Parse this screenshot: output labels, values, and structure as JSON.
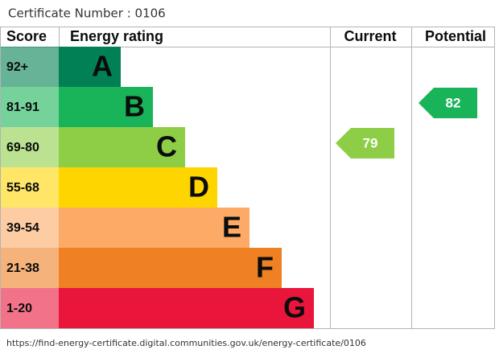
{
  "certificate": "Certificate Number : 0106",
  "headers": {
    "score": "Score",
    "rating": "Energy rating",
    "current": "Current",
    "potential": "Potential"
  },
  "bands": [
    {
      "score": "92+",
      "letter": "A",
      "color": "#008054"
    },
    {
      "score": "81-91",
      "letter": "B",
      "color": "#19b459"
    },
    {
      "score": "69-80",
      "letter": "C",
      "color": "#8dce46"
    },
    {
      "score": "55-68",
      "letter": "D",
      "color": "#ffd500"
    },
    {
      "score": "39-54",
      "letter": "E",
      "color": "#fcaa65"
    },
    {
      "score": "21-38",
      "letter": "F",
      "color": "#ef8023"
    },
    {
      "score": "1-20",
      "letter": "G",
      "color": "#e9153b"
    }
  ],
  "current": {
    "value": 79
  },
  "potential": {
    "value": 82
  },
  "url": "https://find-energy-certificate.digital.communities.gov.uk/energy-certificate/0106"
}
